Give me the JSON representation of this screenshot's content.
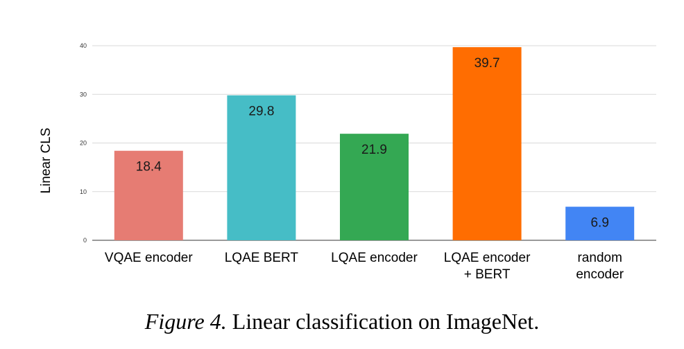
{
  "chart_data": {
    "type": "bar",
    "categories": [
      [
        "VQAE encoder"
      ],
      [
        "LQAE BERT"
      ],
      [
        "LQAE encoder"
      ],
      [
        "LQAE encoder",
        "+ BERT"
      ],
      [
        "random",
        "encoder"
      ]
    ],
    "values": [
      18.4,
      29.8,
      21.9,
      39.7,
      6.9
    ],
    "data_labels": [
      "18.4",
      "29.8",
      "21.9",
      "39.7",
      "6.9"
    ],
    "colors": [
      "#e67c73",
      "#46bdc6",
      "#34a853",
      "#ff6d01",
      "#4285f4"
    ],
    "ylabel": "Linear CLS",
    "xlabel": "",
    "ylim": [
      0,
      40
    ],
    "yticks": [
      0,
      10,
      20,
      30,
      40
    ],
    "grid": true,
    "legend": "none"
  },
  "caption": {
    "label": "Figure 4.",
    "text": " Linear classification on ImageNet."
  }
}
